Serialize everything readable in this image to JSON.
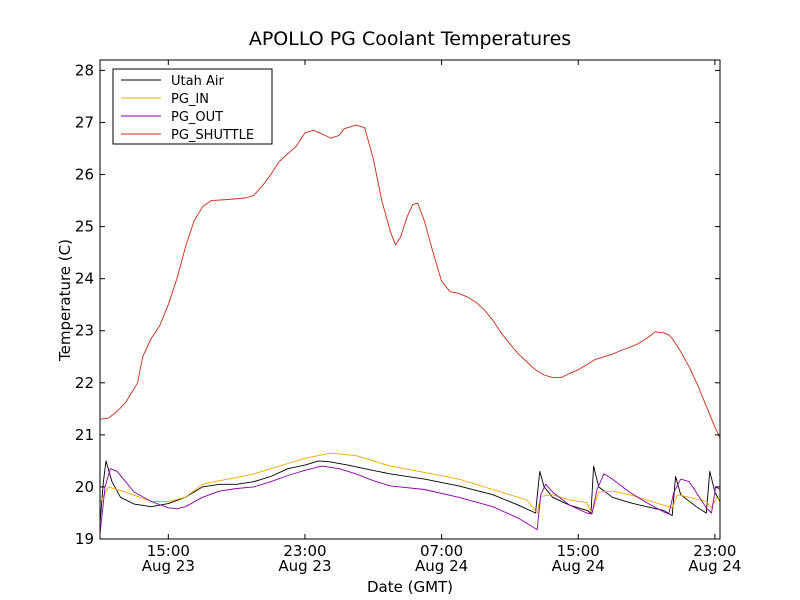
{
  "chart_data": {
    "type": "line",
    "title": "APOLLO PG Coolant Temperatures",
    "xlabel": "Date (GMT)",
    "ylabel": "Temperature (C)",
    "x_unit": "hours since 2014-08-23 11:00 GMT",
    "xlim": [
      0,
      36.3
    ],
    "ylim": [
      19,
      28.2
    ],
    "y_ticks": [
      19,
      20,
      21,
      22,
      23,
      24,
      25,
      26,
      27,
      28
    ],
    "x_ticks": [
      {
        "x": 4,
        "time": "15:00",
        "date": "Aug 23"
      },
      {
        "x": 12,
        "time": "23:00",
        "date": "Aug 23"
      },
      {
        "x": 20,
        "time": "07:00",
        "date": "Aug 24"
      },
      {
        "x": 28,
        "time": "15:00",
        "date": "Aug 24"
      },
      {
        "x": 36,
        "time": "23:00",
        "date": "Aug 24"
      }
    ],
    "legend_position": "top-left",
    "series": [
      {
        "name": "Utah Air",
        "color": "#000000",
        "points": [
          [
            0,
            19.3
          ],
          [
            0.2,
            20.1
          ],
          [
            0.35,
            20.5
          ],
          [
            0.7,
            20.1
          ],
          [
            1.2,
            19.8
          ],
          [
            2,
            19.67
          ],
          [
            3,
            19.62
          ],
          [
            4,
            19.68
          ],
          [
            5,
            19.8
          ],
          [
            6,
            20.0
          ],
          [
            7,
            20.05
          ],
          [
            8,
            20.05
          ],
          [
            9,
            20.1
          ],
          [
            10,
            20.2
          ],
          [
            11,
            20.35
          ],
          [
            12,
            20.42
          ],
          [
            12.8,
            20.5
          ],
          [
            13.5,
            20.48
          ],
          [
            14.5,
            20.42
          ],
          [
            15.5,
            20.35
          ],
          [
            17,
            20.25
          ],
          [
            19,
            20.15
          ],
          [
            21,
            20.02
          ],
          [
            23,
            19.85
          ],
          [
            24.5,
            19.65
          ],
          [
            25.5,
            19.5
          ],
          [
            25.75,
            20.3
          ],
          [
            26,
            20.0
          ],
          [
            26.5,
            19.8
          ],
          [
            27.5,
            19.65
          ],
          [
            28.5,
            19.55
          ],
          [
            28.75,
            19.5
          ],
          [
            28.9,
            20.4
          ],
          [
            29.2,
            20.0
          ],
          [
            30,
            19.8
          ],
          [
            31,
            19.7
          ],
          [
            32,
            19.62
          ],
          [
            33,
            19.55
          ],
          [
            33.5,
            19.45
          ],
          [
            33.7,
            20.2
          ],
          [
            34,
            19.85
          ],
          [
            35,
            19.6
          ],
          [
            35.5,
            19.5
          ],
          [
            35.7,
            20.3
          ],
          [
            36,
            19.9
          ],
          [
            36.3,
            19.72
          ]
        ]
      },
      {
        "name": "PG_IN",
        "color": "#f0a800",
        "points": [
          [
            0,
            19.7
          ],
          [
            0.5,
            20.0
          ],
          [
            1.5,
            19.9
          ],
          [
            3,
            19.72
          ],
          [
            4,
            19.72
          ],
          [
            5,
            19.8
          ],
          [
            6,
            20.05
          ],
          [
            7,
            20.12
          ],
          [
            8,
            20.18
          ],
          [
            9,
            20.25
          ],
          [
            10,
            20.35
          ],
          [
            11,
            20.45
          ],
          [
            12,
            20.55
          ],
          [
            13.5,
            20.65
          ],
          [
            15,
            20.6
          ],
          [
            16,
            20.5
          ],
          [
            17,
            20.4
          ],
          [
            19,
            20.28
          ],
          [
            21,
            20.15
          ],
          [
            23,
            19.95
          ],
          [
            25,
            19.75
          ],
          [
            25.6,
            19.5
          ],
          [
            25.8,
            19.82
          ],
          [
            26.5,
            19.85
          ],
          [
            27.5,
            19.75
          ],
          [
            28.5,
            19.7
          ],
          [
            28.8,
            19.5
          ],
          [
            29.2,
            19.9
          ],
          [
            30,
            19.92
          ],
          [
            31,
            19.85
          ],
          [
            32,
            19.75
          ],
          [
            33,
            19.65
          ],
          [
            33.5,
            19.6
          ],
          [
            33.8,
            19.85
          ],
          [
            34.5,
            19.8
          ],
          [
            35.5,
            19.72
          ],
          [
            35.8,
            19.6
          ],
          [
            36.1,
            19.8
          ],
          [
            36.3,
            19.75
          ]
        ]
      },
      {
        "name": "PG_OUT",
        "color": "#8b00a8",
        "points": [
          [
            0,
            19.1
          ],
          [
            0.3,
            20.0
          ],
          [
            0.6,
            20.35
          ],
          [
            1,
            20.3
          ],
          [
            1.5,
            20.1
          ],
          [
            2,
            19.9
          ],
          [
            3,
            19.72
          ],
          [
            4,
            19.6
          ],
          [
            4.5,
            19.58
          ],
          [
            5,
            19.62
          ],
          [
            6,
            19.8
          ],
          [
            7,
            19.92
          ],
          [
            8,
            19.97
          ],
          [
            9,
            20.0
          ],
          [
            10,
            20.1
          ],
          [
            11,
            20.22
          ],
          [
            12,
            20.32
          ],
          [
            13,
            20.4
          ],
          [
            14,
            20.35
          ],
          [
            15,
            20.25
          ],
          [
            16,
            20.12
          ],
          [
            17,
            20.02
          ],
          [
            19,
            19.95
          ],
          [
            21,
            19.8
          ],
          [
            23,
            19.62
          ],
          [
            24.5,
            19.4
          ],
          [
            25.6,
            19.18
          ],
          [
            25.8,
            19.85
          ],
          [
            26.1,
            20.05
          ],
          [
            26.5,
            19.9
          ],
          [
            27.5,
            19.65
          ],
          [
            28.5,
            19.5
          ],
          [
            28.8,
            19.48
          ],
          [
            29.1,
            19.95
          ],
          [
            29.5,
            20.25
          ],
          [
            30,
            20.15
          ],
          [
            31,
            19.9
          ],
          [
            32,
            19.7
          ],
          [
            33,
            19.52
          ],
          [
            33.3,
            19.48
          ],
          [
            33.6,
            19.9
          ],
          [
            34,
            20.15
          ],
          [
            34.5,
            20.1
          ],
          [
            35,
            19.85
          ],
          [
            35.5,
            19.6
          ],
          [
            35.8,
            19.5
          ],
          [
            36.05,
            20.0
          ],
          [
            36.3,
            19.95
          ]
        ]
      },
      {
        "name": "PG_SHUTTLE",
        "color": "#cc2a1c",
        "points": [
          [
            0,
            21.3
          ],
          [
            0.5,
            21.32
          ],
          [
            1,
            21.45
          ],
          [
            1.5,
            21.62
          ],
          [
            2.2,
            22.0
          ],
          [
            2.5,
            22.5
          ],
          [
            3,
            22.85
          ],
          [
            3.5,
            23.1
          ],
          [
            4,
            23.5
          ],
          [
            4.5,
            24.0
          ],
          [
            5,
            24.6
          ],
          [
            5.5,
            25.1
          ],
          [
            6,
            25.38
          ],
          [
            6.5,
            25.5
          ],
          [
            7.5,
            25.52
          ],
          [
            8.5,
            25.55
          ],
          [
            9,
            25.6
          ],
          [
            9.5,
            25.78
          ],
          [
            10,
            26.0
          ],
          [
            10.5,
            26.25
          ],
          [
            11,
            26.4
          ],
          [
            11.5,
            26.55
          ],
          [
            12,
            26.8
          ],
          [
            12.5,
            26.85
          ],
          [
            13,
            26.78
          ],
          [
            13.5,
            26.7
          ],
          [
            14,
            26.75
          ],
          [
            14.3,
            26.88
          ],
          [
            15,
            26.95
          ],
          [
            15.5,
            26.9
          ],
          [
            16,
            26.3
          ],
          [
            16.5,
            25.5
          ],
          [
            17,
            24.9
          ],
          [
            17.3,
            24.65
          ],
          [
            17.6,
            24.8
          ],
          [
            18,
            25.2
          ],
          [
            18.3,
            25.42
          ],
          [
            18.6,
            25.45
          ],
          [
            19,
            25.1
          ],
          [
            19.5,
            24.5
          ],
          [
            20,
            23.95
          ],
          [
            20.5,
            23.75
          ],
          [
            21,
            23.72
          ],
          [
            21.5,
            23.65
          ],
          [
            22,
            23.55
          ],
          [
            22.5,
            23.4
          ],
          [
            23,
            23.2
          ],
          [
            23.5,
            22.95
          ],
          [
            24,
            22.75
          ],
          [
            24.5,
            22.55
          ],
          [
            25,
            22.4
          ],
          [
            25.5,
            22.25
          ],
          [
            26,
            22.15
          ],
          [
            26.5,
            22.1
          ],
          [
            27,
            22.1
          ],
          [
            27.5,
            22.18
          ],
          [
            28,
            22.25
          ],
          [
            28.5,
            22.35
          ],
          [
            29,
            22.45
          ],
          [
            29.5,
            22.5
          ],
          [
            30,
            22.55
          ],
          [
            30.5,
            22.62
          ],
          [
            31,
            22.68
          ],
          [
            31.5,
            22.75
          ],
          [
            32,
            22.85
          ],
          [
            32.5,
            22.98
          ],
          [
            33,
            22.96
          ],
          [
            33.3,
            22.92
          ],
          [
            33.5,
            22.85
          ],
          [
            34,
            22.6
          ],
          [
            34.5,
            22.3
          ],
          [
            35,
            21.95
          ],
          [
            35.5,
            21.55
          ],
          [
            36,
            21.15
          ],
          [
            36.3,
            20.95
          ]
        ]
      }
    ]
  }
}
